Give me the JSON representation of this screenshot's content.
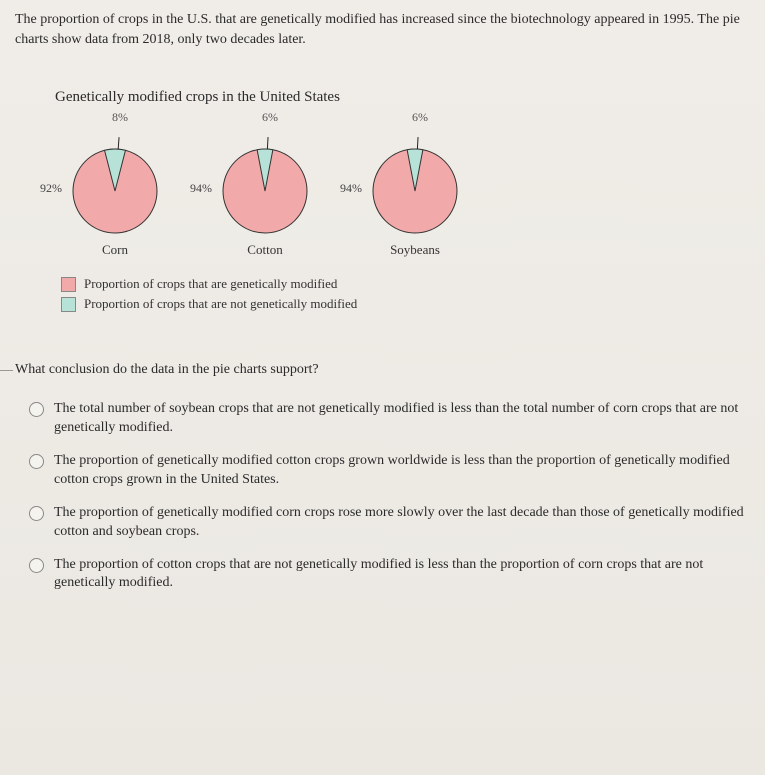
{
  "intro": "The proportion of crops in the U.S. that are genetically modified has increased since the biotechnology appeared in 1995. The pie charts show data from 2018, only two decades later.",
  "chart": {
    "title": "Genetically modified crops in the United States",
    "colors": {
      "gm": "#f2a9a9",
      "non_gm": "#b7e2d8",
      "stroke": "#333333",
      "tick": "#222222"
    },
    "pies": [
      {
        "name": "Corn",
        "gm_pct": 92,
        "non_pct": 8,
        "gm_label": "92%",
        "non_label": "8%"
      },
      {
        "name": "Cotton",
        "gm_pct": 94,
        "non_pct": 6,
        "gm_label": "94%",
        "non_label": "6%"
      },
      {
        "name": "Soybeans",
        "gm_pct": 94,
        "non_pct": 6,
        "gm_label": "94%",
        "non_label": "6%"
      }
    ],
    "legend": [
      {
        "swatch": "#f2a9a9",
        "text": "Proportion of crops that are genetically modified"
      },
      {
        "swatch": "#b7e2d8",
        "text": "Proportion of crops that are not genetically modified"
      }
    ]
  },
  "question": "What conclusion do the data in the pie charts support?",
  "choices": [
    "The total number of soybean crops that are not genetically modified is less than the total number of corn crops that are not genetically modified.",
    "The proportion of genetically modified cotton crops grown worldwide is less than the proportion of genetically modified cotton crops grown in the United States.",
    "The proportion of genetically modified corn crops rose more slowly over the last decade than those of genetically modified cotton and soybean crops.",
    "The proportion of cotton crops that are not genetically modified is less than the proportion of corn crops that are not genetically modified."
  ]
}
